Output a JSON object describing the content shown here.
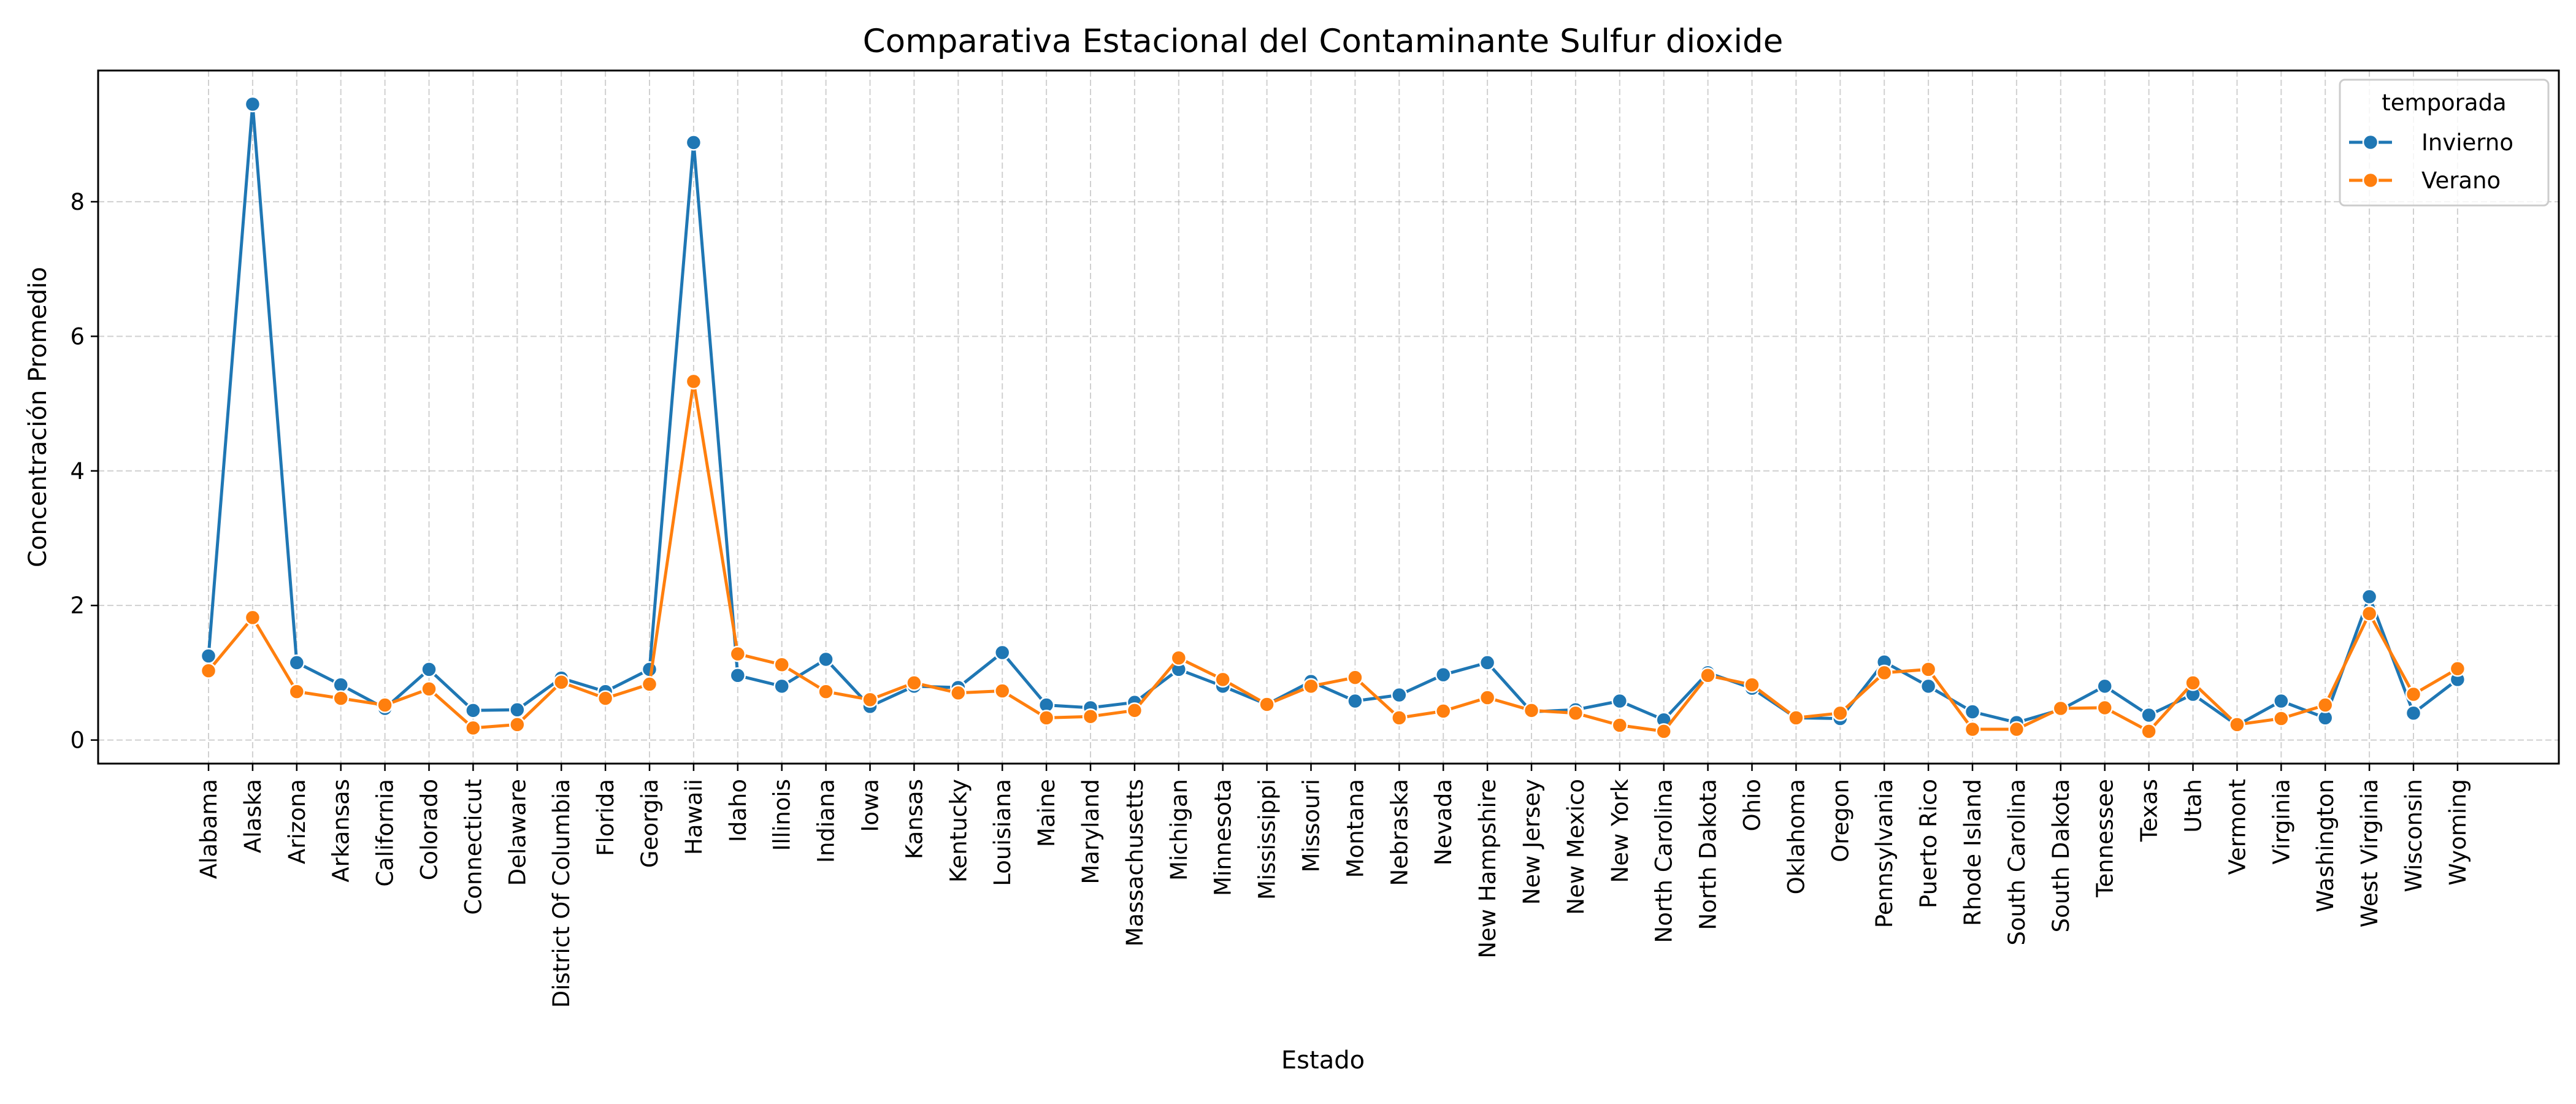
{
  "chart_data": {
    "type": "line",
    "title": "Comparativa Estacional del Contaminante Sulfur dioxide",
    "xlabel": "Estado",
    "ylabel": "Concentración Promedio",
    "ylim": [
      -0.35,
      9.95
    ],
    "yticks": [
      0,
      2,
      4,
      6,
      8
    ],
    "grid": true,
    "legend_position": "top-right",
    "legend_title": "temporada",
    "categories": [
      "Alabama",
      "Alaska",
      "Arizona",
      "Arkansas",
      "California",
      "Colorado",
      "Connecticut",
      "Delaware",
      "District Of Columbia",
      "Florida",
      "Georgia",
      "Hawaii",
      "Idaho",
      "Illinois",
      "Indiana",
      "Iowa",
      "Kansas",
      "Kentucky",
      "Louisiana",
      "Maine",
      "Maryland",
      "Massachusetts",
      "Michigan",
      "Minnesota",
      "Mississippi",
      "Missouri",
      "Montana",
      "Nebraska",
      "Nevada",
      "New Hampshire",
      "New Jersey",
      "New Mexico",
      "New York",
      "North Carolina",
      "North Dakota",
      "Ohio",
      "Oklahoma",
      "Oregon",
      "Pennsylvania",
      "Puerto Rico",
      "Rhode Island",
      "South Carolina",
      "South Dakota",
      "Tennessee",
      "Texas",
      "Utah",
      "Vermont",
      "Virginia",
      "Washington",
      "West Virginia",
      "Wisconsin",
      "Wyoming"
    ],
    "series": [
      {
        "name": "Invierno",
        "color": "#1f77b4",
        "values": [
          1.25,
          9.45,
          1.15,
          0.82,
          0.47,
          1.05,
          0.44,
          0.45,
          0.92,
          0.72,
          1.05,
          8.88,
          0.96,
          0.8,
          1.2,
          0.5,
          0.8,
          0.78,
          1.3,
          0.52,
          0.48,
          0.56,
          1.05,
          0.8,
          0.53,
          0.87,
          0.58,
          0.67,
          0.97,
          1.15,
          0.42,
          0.45,
          0.58,
          0.3,
          1.0,
          0.77,
          0.33,
          0.32,
          1.16,
          0.8,
          0.42,
          0.26,
          0.45,
          0.8,
          0.37,
          0.68,
          0.22,
          0.58,
          0.33,
          2.13,
          0.4,
          0.9
        ]
      },
      {
        "name": "Verano",
        "color": "#ff7f0e",
        "values": [
          1.03,
          1.82,
          0.72,
          0.62,
          0.52,
          0.76,
          0.18,
          0.23,
          0.86,
          0.62,
          0.83,
          5.33,
          1.28,
          1.12,
          0.72,
          0.6,
          0.85,
          0.7,
          0.73,
          0.33,
          0.35,
          0.44,
          1.22,
          0.9,
          0.53,
          0.8,
          0.93,
          0.33,
          0.43,
          0.63,
          0.44,
          0.4,
          0.22,
          0.13,
          0.96,
          0.82,
          0.33,
          0.4,
          1.0,
          1.05,
          0.16,
          0.16,
          0.47,
          0.48,
          0.13,
          0.85,
          0.23,
          0.32,
          0.52,
          1.88,
          0.68,
          1.06
        ]
      }
    ]
  }
}
